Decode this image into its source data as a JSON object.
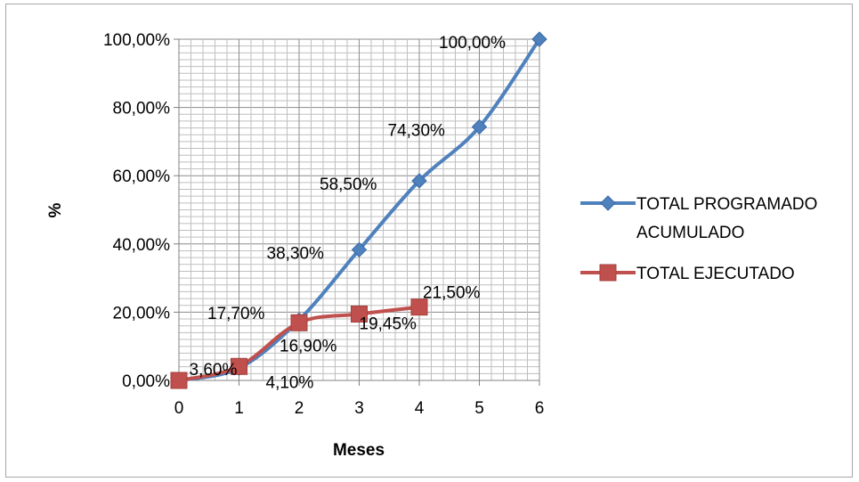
{
  "chart_data": {
    "type": "line",
    "title": "",
    "xlabel": "Meses",
    "ylabel": "%",
    "x": [
      0,
      1,
      2,
      3,
      4,
      5,
      6
    ],
    "xlim": [
      0,
      6
    ],
    "ylim": [
      0,
      100
    ],
    "y_ticks": [
      "0,00%",
      "20,00%",
      "40,00%",
      "60,00%",
      "80,00%",
      "100,00%"
    ],
    "x_ticks": [
      "0",
      "1",
      "2",
      "3",
      "4",
      "5",
      "6"
    ],
    "grid": true,
    "legend_position": "right",
    "series": [
      {
        "name_lines": [
          "TOTAL PROGRAMADO",
          "ACUMULADO"
        ],
        "color": "#4f81bd",
        "marker": "diamond",
        "x": [
          0,
          1,
          2,
          3,
          4,
          5,
          6
        ],
        "values": [
          0,
          3.6,
          17.7,
          38.3,
          58.5,
          74.3,
          100
        ],
        "labels": [
          "3,60%",
          "17,70%",
          "38,30%",
          "58,50%",
          "74,30%",
          "100,00%"
        ]
      },
      {
        "name_lines": [
          "TOTAL EJECUTADO"
        ],
        "color": "#c0504d",
        "marker": "square",
        "x": [
          0,
          1,
          2,
          3,
          4
        ],
        "values": [
          0,
          4.1,
          16.9,
          19.45,
          21.5
        ],
        "labels": [
          "4,10%",
          "16,90%",
          "19,45%",
          "21,50%"
        ]
      }
    ]
  }
}
